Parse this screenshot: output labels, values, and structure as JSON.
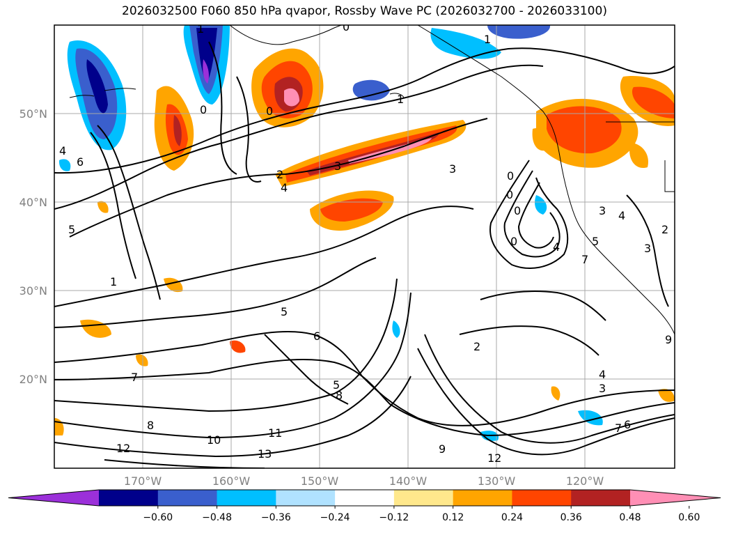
{
  "title": "2026032500 F060 850 hPa qvapor, Rossby Wave PC (2026032700 - 2026033100)",
  "lat_labels": [
    "50°N",
    "40°N",
    "30°N",
    "20°N"
  ],
  "lon_labels": [
    "170°W",
    "160°W",
    "150°W",
    "140°W",
    "130°W",
    "120°W"
  ],
  "contour_labels": [
    "1",
    "0",
    "0",
    "0",
    "3",
    "4",
    "5",
    "6",
    "2",
    "4",
    "3",
    "0",
    "0",
    "0",
    "0",
    "1",
    "1",
    "3",
    "4",
    "3",
    "2",
    "5",
    "7",
    "1",
    "5",
    "6",
    "2",
    "7",
    "8",
    "12",
    "10",
    "11",
    "13",
    "9",
    "12",
    "4",
    "3",
    "7",
    "6",
    "5",
    "8",
    "9",
    "4"
  ],
  "colorbar": {
    "ticks": [
      "−0.60",
      "−0.48",
      "−0.36",
      "−0.24",
      "−0.12",
      "0.12",
      "0.24",
      "0.36",
      "0.48",
      "0.60"
    ],
    "colors": [
      "#9b30d9",
      "#00008b",
      "#3a5fcd",
      "#00bfff",
      "#b0e2ff",
      "#ffffff",
      "#ffe88c",
      "#ffa500",
      "#ff4500",
      "#b22222",
      "#ff8fb5"
    ]
  }
}
